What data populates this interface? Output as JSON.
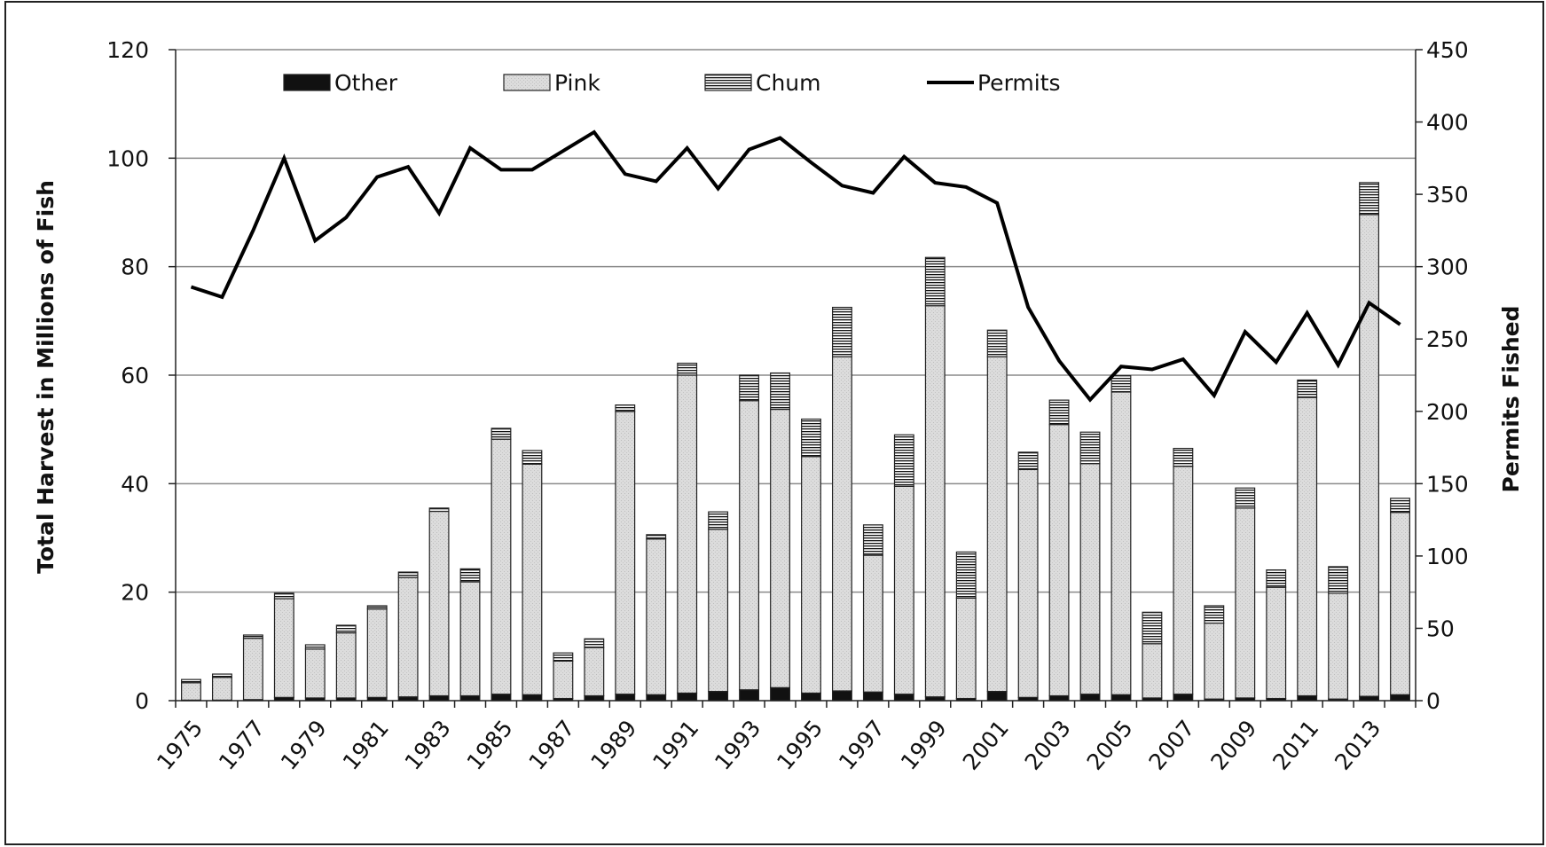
{
  "chart_data": {
    "type": "bar",
    "subtype": "stacked bar with line on secondary axis",
    "title": "",
    "ylabel": "Total Harvest in Millions of Fish",
    "y2label": "Permits Fished",
    "xlabel": "",
    "ylim": [
      0,
      120
    ],
    "y2lim": [
      0,
      450
    ],
    "yticks": [
      0,
      20,
      40,
      60,
      80,
      100,
      120
    ],
    "y2ticks": [
      0,
      50,
      100,
      150,
      200,
      250,
      300,
      350,
      400,
      450
    ],
    "grid": "horizontal",
    "legend_position": "top-left, inside plot",
    "x": [
      1975,
      1976,
      1977,
      1978,
      1979,
      1980,
      1981,
      1982,
      1983,
      1984,
      1985,
      1986,
      1987,
      1988,
      1989,
      1990,
      1991,
      1992,
      1993,
      1994,
      1995,
      1996,
      1997,
      1998,
      1999,
      2000,
      2001,
      2002,
      2003,
      2004,
      2005,
      2006,
      2007,
      2008,
      2009,
      2010,
      2011,
      2012,
      2013,
      2014
    ],
    "x_tick_labels": [
      "1975",
      "1977",
      "1979",
      "1981",
      "1983",
      "1985",
      "1987",
      "1989",
      "1991",
      "1993",
      "1995",
      "1997",
      "1999",
      "2001",
      "2003",
      "2005",
      "2007",
      "2009",
      "2011",
      "2013"
    ],
    "series": [
      {
        "name": "Other",
        "kind": "bar",
        "axis": "left",
        "pattern": "solid-black",
        "values": [
          0.1,
          0.1,
          0.2,
          0.6,
          0.5,
          0.5,
          0.6,
          0.7,
          0.9,
          0.9,
          1.2,
          1.1,
          0.4,
          0.9,
          1.2,
          1.1,
          1.4,
          1.7,
          2.0,
          2.4,
          1.4,
          1.8,
          1.6,
          1.2,
          0.7,
          0.4,
          1.7,
          0.6,
          0.9,
          1.2,
          1.1,
          0.5,
          1.2,
          0.3,
          0.5,
          0.4,
          0.9,
          0.3,
          0.8,
          1.1
        ]
      },
      {
        "name": "Pink",
        "kind": "bar",
        "axis": "left",
        "pattern": "light-gray-dotted",
        "values": [
          3.2,
          4.2,
          11.3,
          18.2,
          9.0,
          12.0,
          16.3,
          22.0,
          34.0,
          21.0,
          47.0,
          42.5,
          6.9,
          8.9,
          52.1,
          28.7,
          58.6,
          29.9,
          53.3,
          51.3,
          43.6,
          61.6,
          25.2,
          38.3,
          72.1,
          18.5,
          61.7,
          42.0,
          50.0,
          42.5,
          55.8,
          10.0,
          42.0,
          14.0,
          35.0,
          20.5,
          55.0,
          19.5,
          88.8,
          33.6
        ]
      },
      {
        "name": "Chum",
        "kind": "bar",
        "axis": "left",
        "pattern": "horizontal-stripes",
        "values": [
          0.6,
          0.6,
          0.6,
          1.0,
          0.8,
          1.4,
          0.6,
          1.0,
          0.6,
          2.4,
          2.0,
          2.5,
          1.5,
          1.6,
          1.2,
          0.8,
          2.2,
          3.2,
          4.7,
          6.7,
          6.9,
          9.1,
          5.6,
          9.5,
          8.9,
          8.5,
          4.9,
          3.2,
          4.5,
          5.8,
          3.0,
          5.8,
          3.3,
          3.2,
          3.7,
          3.2,
          3.2,
          4.9,
          5.9,
          2.6
        ]
      },
      {
        "name": "Permits",
        "kind": "line",
        "axis": "right",
        "color": "#000000",
        "values": [
          286,
          279,
          325,
          375,
          318,
          334,
          362,
          369,
          337,
          382,
          367,
          367,
          380,
          393,
          364,
          359,
          382,
          354,
          381,
          389,
          372,
          356,
          351,
          376,
          358,
          355,
          344,
          272,
          235,
          208,
          231,
          229,
          236,
          211,
          255,
          234,
          268,
          232,
          275,
          260
        ]
      }
    ]
  }
}
